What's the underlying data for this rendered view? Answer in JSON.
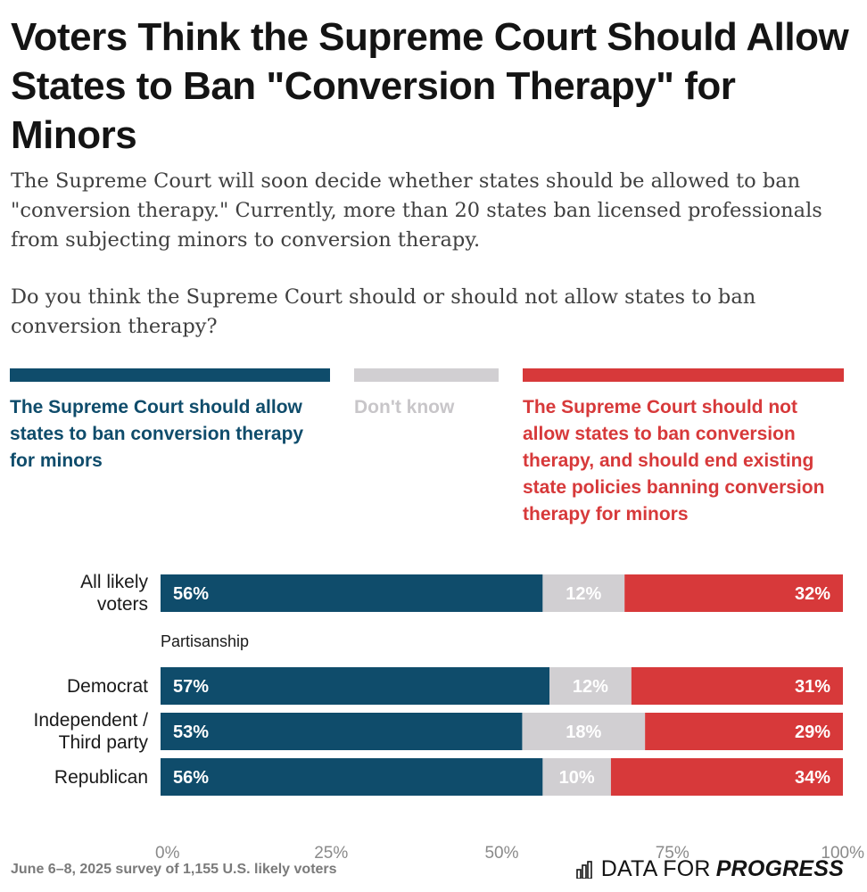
{
  "title": "Voters Think the Supreme Court Should Allow States to Ban \"Conversion Therapy\" for Minors",
  "subtitle": "The Supreme Court will soon decide whether states should be allowed to ban \"conversion therapy.\" Currently, more than 20 states ban licensed professionals from subjecting minors to conversion therapy.",
  "question": "Do you think the Supreme Court should or should not allow states to ban conversion therapy?",
  "legend": [
    {
      "label": "The Supreme Court should allow states to ban conversion therapy for minors",
      "color": "#0f4c6b"
    },
    {
      "label": "Don't know",
      "color": "#d1cfd2"
    },
    {
      "label": "The Supreme Court should not allow states to ban conversion therapy, and should end existing state policies banning conversion therapy for minors",
      "color": "#d7393a"
    }
  ],
  "group_label": "Partisanship",
  "chart_data": {
    "type": "bar",
    "orientation": "horizontal",
    "stacked": true,
    "categories": [
      "All likely voters",
      "Democrat",
      "Independent / Third party",
      "Republican"
    ],
    "series": [
      {
        "name": "The Supreme Court should allow states to ban conversion therapy for minors",
        "values": [
          56,
          57,
          53,
          56
        ],
        "color": "#0f4c6b"
      },
      {
        "name": "Don't know",
        "values": [
          12,
          12,
          18,
          10
        ],
        "color": "#d1cfd2"
      },
      {
        "name": "The Supreme Court should not allow states to ban conversion therapy, and should end existing state policies banning conversion therapy for minors",
        "values": [
          32,
          31,
          29,
          34
        ],
        "color": "#d7393a"
      }
    ],
    "data_labels": [
      [
        "56%",
        "12%",
        "32%"
      ],
      [
        "57%",
        "12%",
        "31%"
      ],
      [
        "53%",
        "18%",
        "29%"
      ],
      [
        "56%",
        "10%",
        "34%"
      ]
    ],
    "xlim": [
      0,
      100
    ],
    "x_ticks": [
      "0%",
      "25%",
      "50%",
      "75%",
      "100%"
    ],
    "grid": false
  },
  "footer": {
    "note": "June 6–8, 2025 survey of 1,155 U.S. likely voters",
    "brand_part1": "DATA FOR",
    "brand_part2": "PROGRESS"
  }
}
